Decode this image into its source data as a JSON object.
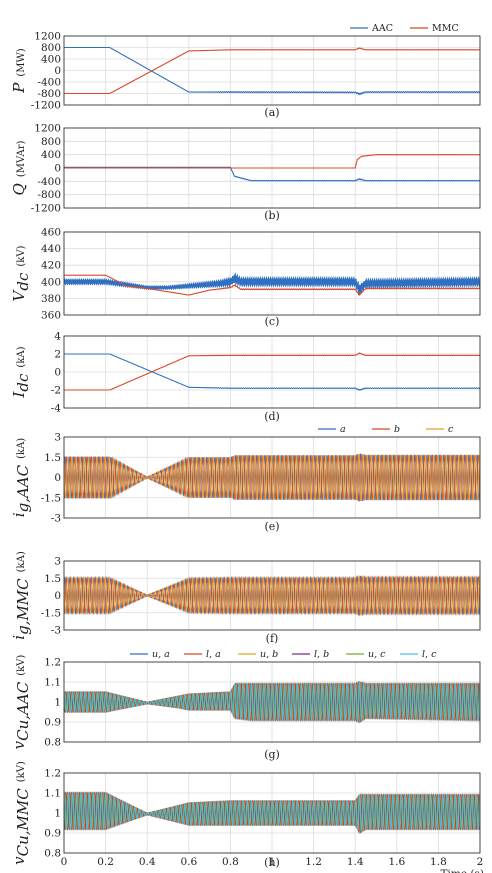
{
  "chart_data": [
    {
      "type": "line",
      "panel": "(a)",
      "ylabel": "P",
      "unit": "(MW)",
      "yticks": [
        "1200",
        "800",
        "400",
        "0",
        "-400",
        "-800",
        "-1200"
      ],
      "ylim": [
        -1200,
        1200
      ],
      "xlim": [
        0,
        2
      ],
      "legend": [
        "AAC",
        "MMC"
      ],
      "colors": [
        "#3070c0",
        "#d9472b"
      ],
      "series": [
        {
          "name": "AAC",
          "x": [
            0,
            0.22,
            0.6,
            0.8,
            1.4,
            1.42,
            1.45,
            2.0
          ],
          "y": [
            800,
            800,
            -750,
            -750,
            -760,
            -820,
            -750,
            -750
          ],
          "osc": [
            0,
            0,
            0,
            15,
            15,
            30,
            15,
            15
          ]
        },
        {
          "name": "MMC",
          "x": [
            0,
            0.22,
            0.6,
            0.8,
            1.4,
            1.42,
            1.45,
            2.0
          ],
          "y": [
            -800,
            -800,
            680,
            720,
            720,
            780,
            720,
            720
          ],
          "osc": [
            0,
            0,
            0,
            4,
            4,
            8,
            4,
            4
          ]
        }
      ]
    },
    {
      "type": "line",
      "panel": "(b)",
      "ylabel": "Q",
      "unit": "(MVAr)",
      "yticks": [
        "1200",
        "800",
        "400",
        "0",
        "-400",
        "-800",
        "-1200"
      ],
      "ylim": [
        -1200,
        1200
      ],
      "xlim": [
        0,
        2
      ],
      "colors": [
        "#3070c0",
        "#d9472b"
      ],
      "series": [
        {
          "name": "AAC",
          "x": [
            0,
            0.8,
            0.82,
            0.9,
            1.4,
            1.42,
            1.45,
            2.0
          ],
          "y": [
            20,
            20,
            -250,
            -380,
            -380,
            -330,
            -380,
            -380
          ],
          "osc": [
            3,
            3,
            10,
            8,
            8,
            15,
            8,
            8
          ]
        },
        {
          "name": "MMC",
          "x": [
            0,
            0.8,
            1.4,
            1.41,
            1.43,
            1.5,
            2.0
          ],
          "y": [
            0,
            0,
            0,
            250,
            350,
            400,
            400
          ],
          "osc": [
            0,
            0,
            0,
            5,
            5,
            4,
            4
          ]
        }
      ]
    },
    {
      "type": "line",
      "panel": "(c)",
      "ylabel": "V",
      "ylabel_sub": "dc",
      "unit": "(kV)",
      "yticks": [
        "460",
        "440",
        "420",
        "400",
        "380",
        "360"
      ],
      "ylim": [
        360,
        460
      ],
      "xlim": [
        0,
        2
      ],
      "colors": [
        "#3070c0",
        "#d9472b"
      ],
      "series": [
        {
          "name": "AAC",
          "x": [
            0,
            0.2,
            0.4,
            0.5,
            0.6,
            0.75,
            0.8,
            0.82,
            0.85,
            1.4,
            1.42,
            1.45,
            2.0
          ],
          "y": [
            400,
            400,
            393,
            393,
            395,
            398,
            400,
            404,
            400,
            400,
            390,
            398,
            400
          ],
          "osc": [
            2.5,
            2.5,
            1.5,
            1.5,
            2,
            3,
            4,
            5,
            4,
            4,
            6,
            4,
            4
          ]
        },
        {
          "name": "MMC",
          "x": [
            0,
            0.2,
            0.3,
            0.4,
            0.55,
            0.6,
            0.7,
            0.8,
            0.82,
            0.85,
            1.4,
            1.42,
            1.45,
            2.0
          ],
          "y": [
            408,
            408,
            395,
            392,
            386,
            384,
            390,
            393,
            396,
            391,
            391,
            384,
            392,
            392
          ],
          "osc": [
            0,
            0,
            0,
            0,
            0,
            0,
            0,
            0.5,
            0.5,
            0.5,
            0.5,
            0.5,
            0.5,
            0.5
          ]
        }
      ]
    },
    {
      "type": "line",
      "panel": "(d)",
      "ylabel": "I",
      "ylabel_sub": "dc",
      "unit": "(kA)",
      "yticks": [
        "4",
        "2",
        "0",
        "-2",
        "-4"
      ],
      "ylim": [
        -4,
        4
      ],
      "xlim": [
        0,
        2
      ],
      "colors": [
        "#3070c0",
        "#d9472b"
      ],
      "series": [
        {
          "name": "AAC",
          "x": [
            0,
            0.22,
            0.6,
            0.8,
            1.4,
            1.42,
            1.45,
            2.0
          ],
          "y": [
            2,
            2,
            -1.7,
            -1.8,
            -1.8,
            -2.0,
            -1.8,
            -1.8
          ],
          "osc": [
            0,
            0,
            0,
            0.03,
            0.03,
            0.05,
            0.03,
            0.03
          ]
        },
        {
          "name": "MMC",
          "x": [
            0,
            0.22,
            0.6,
            0.8,
            1.4,
            1.42,
            1.45,
            2.0
          ],
          "y": [
            -2,
            -2,
            1.8,
            1.85,
            1.85,
            2.1,
            1.85,
            1.85
          ],
          "osc": [
            0,
            0,
            0,
            0.02,
            0.02,
            0.03,
            0.02,
            0.02
          ]
        }
      ]
    },
    {
      "type": "line",
      "panel": "(e)",
      "ylabel": "i",
      "ylabel_sub": "g,AAC",
      "unit": "(kA)",
      "yticks": [
        "3",
        "1.5",
        "0",
        "-1.5",
        "-3"
      ],
      "ylim": [
        -3,
        3
      ],
      "xlim": [
        0,
        2
      ],
      "legend": [
        "a",
        "b",
        "c"
      ],
      "colors": [
        "#3070c0",
        "#d9472b",
        "#e2a224"
      ],
      "envelope": {
        "x": [
          0,
          0.22,
          0.4,
          0.6,
          0.8,
          0.82,
          1.4,
          1.42,
          1.45,
          2.0
        ],
        "amp": [
          1.55,
          1.55,
          0.05,
          1.5,
          1.5,
          1.65,
          1.65,
          1.78,
          1.68,
          1.68
        ]
      }
    },
    {
      "type": "line",
      "panel": "(f)",
      "ylabel": "i",
      "ylabel_sub": "g,MMC",
      "unit": "(kA)",
      "yticks": [
        "3",
        "1.5",
        "0",
        "-1.5",
        "-3"
      ],
      "ylim": [
        -3,
        3
      ],
      "xlim": [
        0,
        2
      ],
      "colors": [
        "#3070c0",
        "#d9472b",
        "#e2a224"
      ],
      "envelope": {
        "x": [
          0,
          0.22,
          0.4,
          0.6,
          0.8,
          1.4,
          1.42,
          1.45,
          2.0
        ],
        "amp": [
          1.55,
          1.55,
          0.05,
          1.5,
          1.55,
          1.55,
          1.7,
          1.6,
          1.6
        ]
      }
    },
    {
      "type": "line",
      "panel": "(g)",
      "ylabel": "v",
      "ylabel_sub": "Cu,AAC",
      "unit": "(kV)",
      "yticks": [
        "1.2",
        "1.1",
        "1",
        "0.9",
        "0.8"
      ],
      "ylim": [
        0.8,
        1.2
      ],
      "xlim": [
        0,
        2
      ],
      "legend": [
        "u, a",
        "l, a",
        "u, b",
        "l, b",
        "u, c",
        "l, c"
      ],
      "colors": [
        "#3070c0",
        "#d9472b",
        "#e2a224",
        "#7e2f8e",
        "#77ac30",
        "#4dbeee"
      ],
      "envelope": {
        "x": [
          0,
          0.2,
          0.4,
          0.55,
          0.6,
          0.8,
          0.82,
          0.9,
          1.4,
          1.42,
          1.45,
          2.0
        ],
        "hi": [
          1.05,
          1.05,
          1.0,
          1.03,
          1.04,
          1.05,
          1.09,
          1.09,
          1.09,
          1.1,
          1.09,
          1.09
        ],
        "lo": [
          0.95,
          0.95,
          0.99,
          0.97,
          0.96,
          0.96,
          0.92,
          0.91,
          0.91,
          0.9,
          0.92,
          0.91
        ]
      }
    },
    {
      "type": "line",
      "panel": "(h)",
      "ylabel": "v",
      "ylabel_sub": "Cu,MMC",
      "unit": "(kV)",
      "yticks": [
        "1.2",
        "1.1",
        "1",
        "0.9",
        "0.8"
      ],
      "ylim": [
        0.8,
        1.2
      ],
      "xlim": [
        0,
        2
      ],
      "xticks": [
        "0",
        "0.2",
        "0.4",
        "0.6",
        "0.8",
        "1",
        "1.2",
        "1.4",
        "1.6",
        "1.8",
        "2"
      ],
      "xlabel": "Time (s)",
      "colors": [
        "#3070c0",
        "#d9472b",
        "#e2a224",
        "#7e2f8e",
        "#77ac30",
        "#4dbeee"
      ],
      "envelope": {
        "x": [
          0,
          0.2,
          0.4,
          0.6,
          0.8,
          1.4,
          1.42,
          1.45,
          2.0
        ],
        "hi": [
          1.1,
          1.1,
          1.0,
          1.05,
          1.06,
          1.06,
          1.09,
          1.09,
          1.09
        ],
        "lo": [
          0.92,
          0.92,
          0.99,
          0.94,
          0.94,
          0.94,
          0.9,
          0.92,
          0.92
        ]
      }
    }
  ]
}
